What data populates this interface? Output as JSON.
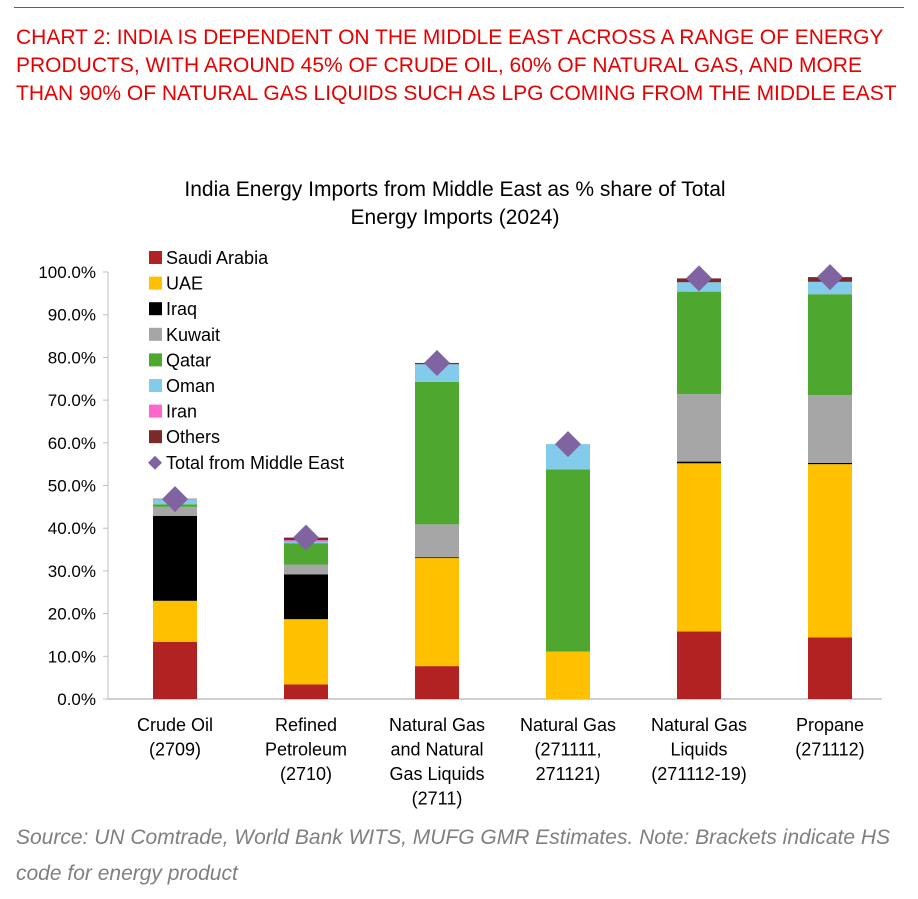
{
  "headline": "Chart 2: India is dependent on the Middle East across a range of energy products, with around 45% of crude oil, 60% of natural gas, and more than 90% of natural gas liquids such as LPG coming from the Middle East",
  "source": "Source: UN Comtrade, World Bank WITS, MUFG GMR Estimates. Note: Brackets indicate HS code for energy product",
  "chart_data": {
    "type": "bar",
    "stacked": true,
    "title": "India Energy Imports from Middle East as % share of Total Energy Imports (2024)",
    "title_lines": [
      "India Energy Imports from Middle East as % share of Total",
      "Energy Imports (2024)"
    ],
    "xlabel": "",
    "ylabel": "",
    "ylim": [
      0,
      100
    ],
    "yticks": [
      "0.0%",
      "10.0%",
      "20.0%",
      "30.0%",
      "40.0%",
      "50.0%",
      "60.0%",
      "70.0%",
      "80.0%",
      "90.0%",
      "100.0%"
    ],
    "grid": false,
    "legend_placement": "top-left",
    "categories": [
      [
        "Crude Oil",
        "(2709)"
      ],
      [
        "Refined",
        "Petroleum",
        "(2710)"
      ],
      [
        "Natural Gas",
        "and Natural",
        "Gas Liquids",
        "(2711)"
      ],
      [
        "Natural Gas",
        "(271111,",
        "271121)"
      ],
      [
        "Natural Gas",
        "Liquids",
        "(271112-19)"
      ],
      [
        "Propane",
        "(271112)"
      ]
    ],
    "series": [
      {
        "name": "Saudi Arabia",
        "color": "#b22222",
        "values": [
          13.4,
          3.4,
          7.7,
          0,
          15.8,
          14.4
        ]
      },
      {
        "name": "UAE",
        "color": "#ffc000",
        "values": [
          9.6,
          15.3,
          25.3,
          11.1,
          39.4,
          40.6
        ]
      },
      {
        "name": "Iraq",
        "color": "#000000",
        "values": [
          19.9,
          10.5,
          0.2,
          0,
          0.4,
          0.3
        ]
      },
      {
        "name": "Kuwait",
        "color": "#a6a6a6",
        "values": [
          2.1,
          2.3,
          7.7,
          0,
          15.8,
          15.9
        ]
      },
      {
        "name": "Qatar",
        "color": "#4ea72e",
        "values": [
          0.6,
          5.0,
          33.4,
          42.7,
          24.0,
          23.6
        ]
      },
      {
        "name": "Oman",
        "color": "#83cbeb",
        "values": [
          1.2,
          0.3,
          4.1,
          5.9,
          2.2,
          2.9
        ]
      },
      {
        "name": "Iran",
        "color": "#ff66cc",
        "values": [
          0,
          0.4,
          0,
          0,
          0,
          0
        ]
      },
      {
        "name": "Others",
        "color": "#7b2a2a",
        "values": [
          0.1,
          0.6,
          0.3,
          0,
          0.9,
          1.1
        ]
      }
    ],
    "markers": {
      "name": "Total from Middle East",
      "color": "#8064a2",
      "shape": "diamond",
      "values": [
        46.8,
        37.8,
        78.7,
        59.7,
        98.5,
        98.8
      ]
    }
  }
}
